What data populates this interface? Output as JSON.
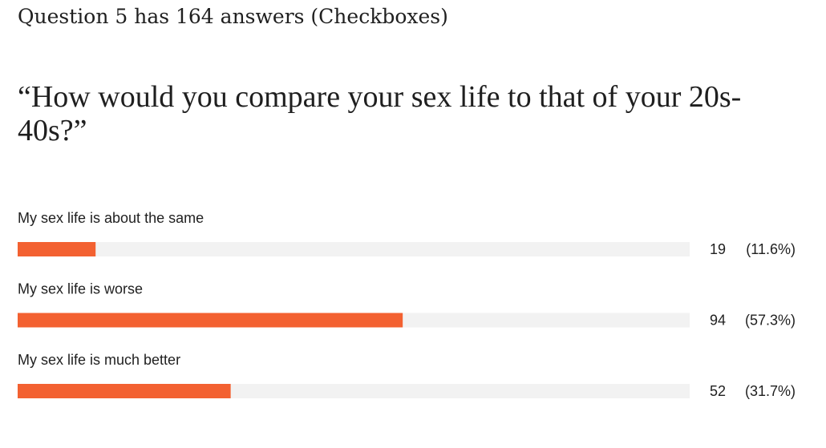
{
  "chart_data": {
    "type": "bar",
    "orientation": "horizontal",
    "title": "Question 5 has 164 answers (Checkboxes)",
    "subtitle": "“How would you compare your sex life to that of your 20s-40s?”",
    "categories": [
      "My sex life is about the same",
      "My sex life is worse",
      "My sex life is much better"
    ],
    "counts": [
      19,
      94,
      52
    ],
    "values": [
      11.6,
      57.3,
      31.7
    ],
    "value_labels": [
      "(11.6%)",
      "(57.3%)",
      "(31.7%)"
    ],
    "xlim": [
      0,
      100
    ],
    "color": "#f36131",
    "track_color": "#f2f2f2"
  }
}
